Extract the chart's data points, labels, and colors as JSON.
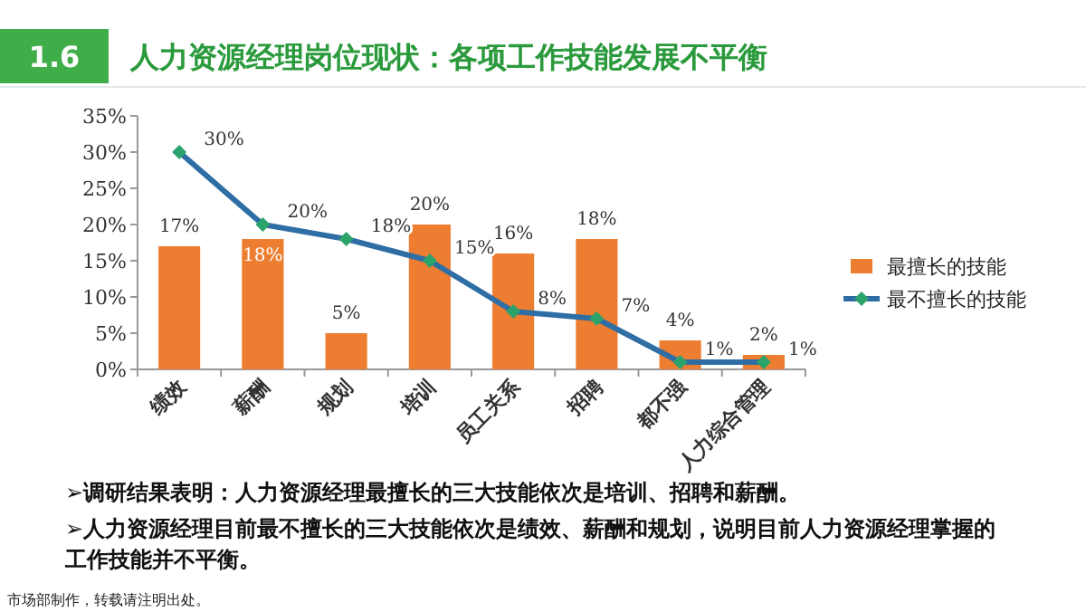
{
  "chart_data": {
    "type": "bar",
    "title": "人力资源经理岗位现状：各项工作技能发展不平衡",
    "annotations": [
      "1.6",
      "➢调研结果表明：人力资源经理最擅长的三大技能依次是培训、招聘和薪酬。",
      "➢人力资源经理目前最不擅长的三大技能依次是绩效、薪酬和规划，说明目前人力资源经理掌握的工作技能并不平衡。",
      "市场部制作，转载请注明出处。"
    ],
    "categories": [
      "绩效",
      "薪酬",
      "规划",
      "培训",
      "员工关系",
      "招聘",
      "都不强",
      "人力综合管理"
    ],
    "series": [
      {
        "name": "最擅长的技能",
        "color": "#ed7d31",
        "values": [
          17,
          18,
          5,
          20,
          16,
          18,
          4,
          2
        ],
        "value_labels": [
          "17%",
          "18%",
          "5%",
          "20%",
          "16%",
          "18%",
          "4%",
          "2%"
        ]
      },
      {
        "name": "最不擅长的技能",
        "type": "line",
        "color": "#2f6ea5",
        "colors": [
          "#2ca36b",
          "#2ca36b",
          "#2ca36b",
          "#2ca36b",
          "#2ca36b",
          "#2ca36b",
          "#2ca36b",
          "#2ca36b"
        ],
        "marker": "diamond",
        "values": [
          30,
          20,
          18,
          15,
          8,
          7,
          1,
          1
        ],
        "value_labels": [
          "30%",
          "20%",
          "18%",
          "15%",
          "8%",
          "7%",
          "1%",
          "1%"
        ]
      }
    ],
    "ylim": [
      0,
      35
    ],
    "yticks": [
      {
        "value": 0,
        "label": "0%"
      },
      {
        "value": 5,
        "label": "5%"
      },
      {
        "value": 10,
        "label": "10%"
      },
      {
        "value": 15,
        "label": "15%"
      },
      {
        "value": 20,
        "label": "20%"
      },
      {
        "value": 25,
        "label": "25%"
      },
      {
        "value": 30,
        "label": "30%"
      },
      {
        "value": 35,
        "label": "35%"
      }
    ],
    "grid": false,
    "legend": "right"
  }
}
